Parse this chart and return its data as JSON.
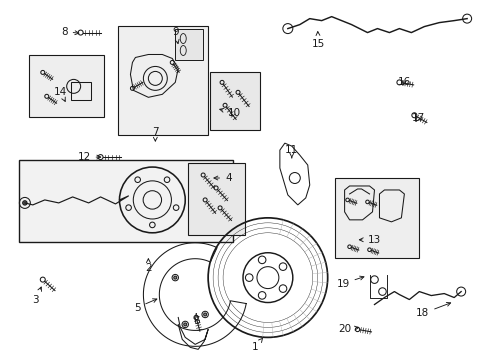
{
  "bg_color": "#ffffff",
  "line_color": "#1a1a1a",
  "box_fill": "#f0f0f0",
  "box_fill2": "#e8e8e8",
  "figsize": [
    4.89,
    3.6
  ],
  "dpi": 100
}
